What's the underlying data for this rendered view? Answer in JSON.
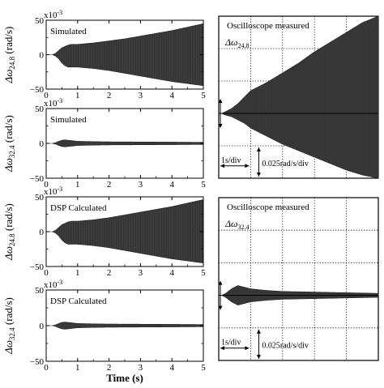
{
  "chart_data": [
    {
      "type": "line",
      "kind": "simulated",
      "label": "Simulated",
      "ylabel_main": "Δω",
      "ylabel_sub": "24.8",
      "ylabel_unit": " (rad/s)",
      "exponent": "x10",
      "exponent_power": "-3",
      "xlim": [
        0,
        5
      ],
      "ylim": [
        -50,
        50
      ],
      "yticks": [
        50,
        0,
        -50
      ],
      "ytick_labels": [
        "50",
        "0",
        "−50"
      ],
      "xticks": [
        0,
        1,
        2,
        3,
        4,
        5
      ],
      "xtick_labels": [
        "0",
        "1",
        "2",
        "3",
        "4",
        "5"
      ],
      "envelope": {
        "t": [
          0,
          0.2,
          0.3,
          0.4,
          0.5,
          0.6,
          0.7,
          0.8,
          1.0,
          1.5,
          2.0,
          2.5,
          3.0,
          3.5,
          4.0,
          4.5,
          5.0
        ],
        "upper": [
          0,
          0,
          2,
          6,
          10,
          12,
          14,
          15,
          15,
          17,
          20,
          23,
          27,
          31,
          35,
          40,
          45
        ],
        "lower": [
          0,
          0,
          -2,
          -6,
          -12,
          -16,
          -18,
          -18,
          -18,
          -20,
          -23,
          -27,
          -31,
          -35,
          -39,
          -42,
          -45
        ]
      }
    },
    {
      "type": "line",
      "kind": "simulated",
      "label": "Simulated",
      "ylabel_main": "Δω",
      "ylabel_sub": "32.4",
      "ylabel_unit": " (rad/s)",
      "exponent": "x10",
      "exponent_power": "-3",
      "xlim": [
        0,
        5
      ],
      "ylim": [
        -50,
        50
      ],
      "yticks": [
        50,
        0,
        -50
      ],
      "ytick_labels": [
        "50",
        "0",
        "−50"
      ],
      "xticks": [
        0,
        1,
        2,
        3,
        4,
        5
      ],
      "xtick_labels": [
        "0",
        "1",
        "2",
        "3",
        "4",
        "5"
      ],
      "envelope": {
        "t": [
          0,
          0.2,
          0.3,
          0.4,
          0.5,
          0.6,
          0.7,
          0.8,
          1.0,
          1.5,
          2.0,
          3.0,
          4.0,
          5.0
        ],
        "upper": [
          0,
          0,
          1,
          3,
          4.5,
          5,
          4.5,
          4,
          3,
          2.5,
          2.2,
          2,
          1.8,
          1.5
        ],
        "lower": [
          0,
          0,
          -1,
          -3,
          -4.5,
          -5,
          -4.5,
          -4,
          -3,
          -2.5,
          -2.2,
          -2,
          -1.8,
          -1.5
        ]
      }
    },
    {
      "type": "line",
      "kind": "simulated",
      "label": "DSP Calculated",
      "ylabel_main": "Δω",
      "ylabel_sub": "24.8",
      "ylabel_unit": " (rad/s)",
      "exponent": "x10",
      "exponent_power": "-3",
      "xlim": [
        0,
        5
      ],
      "ylim": [
        -50,
        50
      ],
      "yticks": [
        50,
        0,
        -50
      ],
      "ytick_labels": [
        "50",
        "0",
        "−50"
      ],
      "xticks": [
        0,
        1,
        2,
        3,
        4,
        5
      ],
      "xtick_labels": [
        "0",
        "1",
        "2",
        "3",
        "4",
        "5"
      ],
      "envelope": {
        "t": [
          0,
          0.2,
          0.3,
          0.4,
          0.5,
          0.6,
          0.7,
          0.8,
          1.0,
          1.5,
          2.0,
          2.5,
          3.0,
          3.5,
          4.0,
          4.5,
          5.0
        ],
        "upper": [
          0,
          0,
          2,
          6,
          10,
          12,
          14,
          15,
          15,
          17,
          20,
          24,
          28,
          32,
          36,
          41,
          46
        ],
        "lower": [
          0,
          0,
          -2,
          -6,
          -12,
          -16,
          -18,
          -18,
          -18,
          -20,
          -23,
          -27,
          -31,
          -35,
          -39,
          -42,
          -45
        ]
      }
    },
    {
      "type": "line",
      "kind": "simulated",
      "label": "DSP Calculated",
      "ylabel_main": "Δω",
      "ylabel_sub": "32.4",
      "ylabel_unit": " (rad/s)",
      "exponent": "x10",
      "exponent_power": "-3",
      "xlim": [
        0,
        5
      ],
      "ylim": [
        -50,
        50
      ],
      "yticks": [
        50,
        0,
        -50
      ],
      "ytick_labels": [
        "50",
        "0",
        "−50"
      ],
      "xticks": [
        0,
        1,
        2,
        3,
        4,
        5
      ],
      "xtick_labels": [
        "0",
        "1",
        "2",
        "3",
        "4",
        "5"
      ],
      "xlabel": "Time (s)",
      "envelope": {
        "t": [
          0,
          0.2,
          0.3,
          0.4,
          0.5,
          0.6,
          0.7,
          0.8,
          1.0,
          1.5,
          2.0,
          3.0,
          4.0,
          5.0
        ],
        "upper": [
          0,
          0,
          1,
          3,
          4.5,
          5,
          4.5,
          4,
          3,
          2.5,
          2.2,
          2,
          1.8,
          1.5
        ],
        "lower": [
          0,
          0,
          -1,
          -3,
          -4.5,
          -5,
          -4.5,
          -4,
          -3,
          -2.5,
          -2.2,
          -2,
          -1.8,
          -1.5
        ]
      }
    },
    {
      "type": "line",
      "kind": "scope",
      "title": "Oscilloscope measured",
      "channel_main": "Δω",
      "channel_sub": "24.8",
      "time_scale": "1s/div",
      "amp_scale": "0.025rad/s/div",
      "divisions": 5,
      "ylim_div": [
        -2,
        3
      ],
      "envelope": {
        "t_div": [
          0,
          0.1,
          0.2,
          0.4,
          0.6,
          0.8,
          1.0,
          1.5,
          2.0,
          2.5,
          3.0,
          3.5,
          4.0,
          4.5,
          5.0
        ],
        "upper": [
          0,
          0,
          0.05,
          0.15,
          0.3,
          0.5,
          0.7,
          0.95,
          1.25,
          1.55,
          1.9,
          2.2,
          2.5,
          2.8,
          3.0
        ],
        "lower": [
          0,
          0,
          -0.05,
          -0.1,
          -0.2,
          -0.3,
          -0.45,
          -0.7,
          -0.95,
          -1.15,
          -1.35,
          -1.55,
          -1.75,
          -1.9,
          -2.0
        ]
      }
    },
    {
      "type": "line",
      "kind": "scope",
      "title": "Oscilloscope measured",
      "channel_main": "Δω",
      "channel_sub": "32.4",
      "time_scale": "1s/div",
      "amp_scale": "0.025rad/s/div",
      "divisions": 5,
      "ylim_div": [
        -2,
        3
      ],
      "envelope": {
        "t_div": [
          0,
          0.1,
          0.2,
          0.4,
          0.6,
          0.8,
          1.0,
          1.5,
          2.0,
          3.0,
          4.0,
          5.0
        ],
        "upper": [
          0,
          0,
          0.05,
          0.2,
          0.3,
          0.25,
          0.2,
          0.15,
          0.12,
          0.1,
          0.08,
          0.06
        ],
        "lower": [
          0,
          0,
          -0.05,
          -0.2,
          -0.3,
          -0.25,
          -0.2,
          -0.15,
          -0.12,
          -0.1,
          -0.08,
          -0.06
        ]
      }
    }
  ]
}
